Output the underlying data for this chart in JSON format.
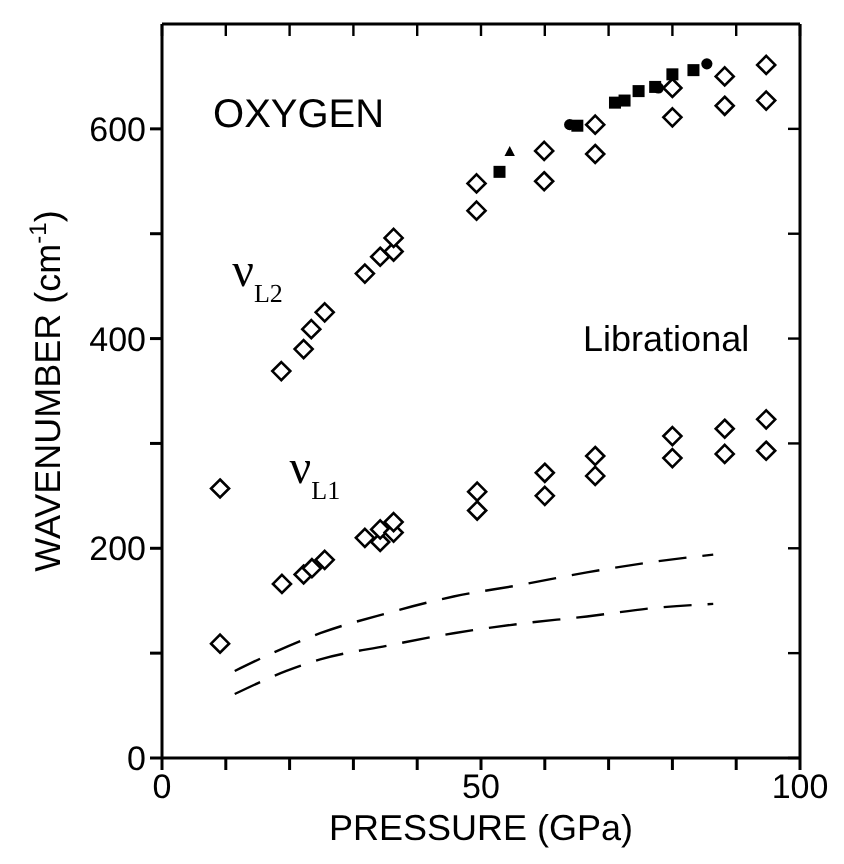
{
  "chart_data": {
    "type": "scatter",
    "title": "OXYGEN",
    "xlabel": "PRESSURE  (GPa)",
    "ylabel": "WAVENUMBER  (cm$^{-1}$)",
    "annotations": [
      "ν$_{L2}$",
      "ν$_{L1}$",
      "Librational"
    ],
    "xlim": [
      0,
      100
    ],
    "ylim": [
      0,
      700
    ],
    "xticks": [
      0,
      {
        "value": 10,
        "label": null
      },
      {
        "value": 20,
        "label": null
      },
      {
        "value": 30,
        "label": null
      },
      {
        "value": 40,
        "label": null
      },
      50,
      {
        "value": 60,
        "label": null
      },
      {
        "value": 70,
        "label": null
      },
      {
        "value": 80,
        "label": null
      },
      {
        "value": 90,
        "label": null
      },
      100
    ],
    "yticks": [
      0,
      {
        "value": 100,
        "label": null
      },
      200,
      {
        "value": 300,
        "label": null
      },
      400,
      {
        "value": 500,
        "label": null
      },
      600
    ],
    "grid": false,
    "legend": false,
    "series": [
      {
        "marker": "diamond",
        "color": "#000000",
        "x": [
          18.7,
          22.2,
          23.4,
          25.5,
          31.8,
          34.2,
          36.3,
          36.3,
          49.3,
          49.3,
          59.9,
          59.9,
          67.9,
          67.9,
          80.0,
          80.0,
          88.2,
          88.2,
          94.7,
          94.7
        ],
        "values": [
          369,
          390,
          409,
          425,
          462,
          478,
          483,
          496,
          522,
          548,
          550,
          579,
          576,
          604,
          611,
          639,
          622,
          650,
          627,
          661
        ]
      },
      {
        "marker": "diamond",
        "color": "#000000",
        "x": [
          9.1,
          9.1,
          18.8,
          22.2,
          23.5,
          25.5,
          31.8,
          34.2,
          34.2,
          36.3,
          36.3,
          49.4,
          49.4,
          60.0,
          60.0,
          67.9,
          67.9,
          80.0,
          80.0,
          88.2,
          88.2,
          94.7,
          94.7
        ],
        "values": [
          257,
          109,
          166,
          175,
          181,
          189,
          210,
          206,
          218,
          215,
          225,
          236,
          254,
          250,
          272,
          269,
          288,
          286,
          307,
          290,
          314,
          293,
          323
        ]
      },
      {
        "marker": "square",
        "color": "#000000",
        "x": [
          52.9,
          65.1,
          71.0,
          72.5,
          74.7,
          77.3,
          80.0,
          83.3
        ],
        "values": [
          559,
          603,
          625,
          627,
          636,
          640,
          652,
          656
        ]
      },
      {
        "marker": "circle",
        "color": "#000000",
        "x": [
          63.9,
          77.8,
          85.4
        ],
        "values": [
          604,
          639,
          662
        ]
      },
      {
        "marker": "triangle",
        "color": "#000000",
        "x": [
          54.5
        ],
        "values": [
          578
        ]
      },
      {
        "type": "line",
        "marker": "none",
        "line_style": "dashed",
        "color": "#000000",
        "x": [
          11.4,
          18,
          24.8,
          35.2,
          45.7,
          56.1,
          66.6,
          77,
          86.4
        ],
        "values": [
          83,
          102,
          119,
          138,
          154,
          165,
          177,
          187,
          194
        ]
      },
      {
        "type": "line",
        "marker": "none",
        "line_style": "dashed",
        "color": "#000000",
        "x": [
          11.4,
          19.5,
          24.8,
          35.2,
          45.7,
          56.1,
          66.6,
          77,
          86.4
        ],
        "values": [
          61,
          83,
          94,
          107,
          119,
          128,
          135,
          143,
          147
        ]
      }
    ]
  }
}
